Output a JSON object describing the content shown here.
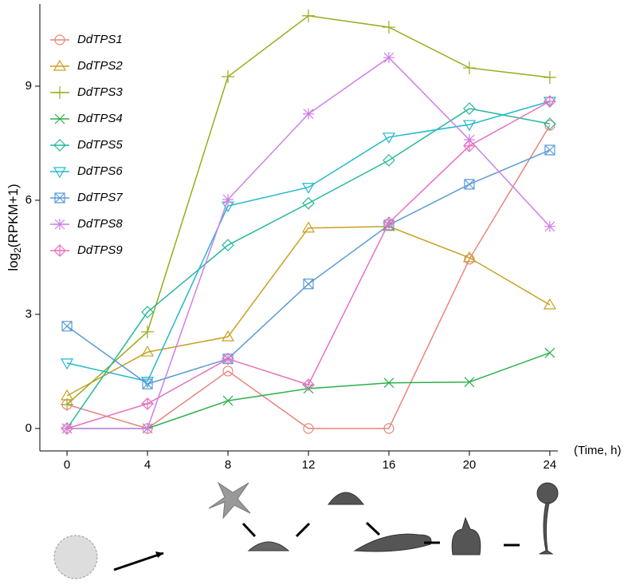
{
  "chart_data": {
    "type": "line",
    "y_label": [
      "log",
      "2",
      "(RPKM+1)"
    ],
    "x_label": "(Time, h)",
    "x": [
      0,
      4,
      8,
      12,
      16,
      20,
      24
    ],
    "xlim": [
      -1.35,
      24.4
    ],
    "xticks": [
      0,
      4,
      8,
      12,
      16,
      20,
      24
    ],
    "ylim": [
      -0.59,
      11.16
    ],
    "yticks": [
      0,
      3,
      6,
      9
    ],
    "grid": false,
    "legend": "top-left",
    "series": [
      {
        "name": "DdTPS1",
        "color": "#e8857a",
        "marker": "circle",
        "values": [
          0.63,
          0,
          1.51,
          0,
          0,
          4.45,
          7.97
        ]
      },
      {
        "name": "DdTPS2",
        "color": "#c9a020",
        "marker": "triangle",
        "values": [
          0.86,
          2.01,
          2.41,
          5.27,
          5.31,
          4.49,
          3.25
        ]
      },
      {
        "name": "DdTPS3",
        "color": "#9aaa1a",
        "marker": "plus",
        "values": [
          0.63,
          2.54,
          9.25,
          10.85,
          10.55,
          9.48,
          9.23
        ]
      },
      {
        "name": "DdTPS4",
        "color": "#2ab04a",
        "marker": "x",
        "values": [
          0,
          0,
          0.73,
          1.05,
          1.2,
          1.22,
          1.99
        ]
      },
      {
        "name": "DdTPS5",
        "color": "#25b89a",
        "marker": "diamond",
        "values": [
          0,
          3.06,
          4.82,
          5.92,
          7.05,
          8.41,
          8.01
        ]
      },
      {
        "name": "DdTPS6",
        "color": "#22b8cc",
        "marker": "triangle-down",
        "values": [
          1.72,
          1.24,
          5.85,
          6.34,
          7.66,
          7.99,
          8.6
        ]
      },
      {
        "name": "DdTPS7",
        "color": "#5b9ad8",
        "marker": "square-x",
        "values": [
          2.69,
          1.17,
          1.83,
          3.8,
          5.35,
          6.42,
          7.32
        ]
      },
      {
        "name": "DdTPS8",
        "color": "#d07ee8",
        "marker": "asterisk",
        "values": [
          0,
          0,
          6.02,
          8.27,
          9.75,
          7.59,
          5.31
        ]
      },
      {
        "name": "DdTPS9",
        "color": "#e870c0",
        "marker": "diamond-plus",
        "values": [
          0,
          0.65,
          1.83,
          1.15,
          5.41,
          7.43,
          8.6
        ]
      }
    ]
  }
}
